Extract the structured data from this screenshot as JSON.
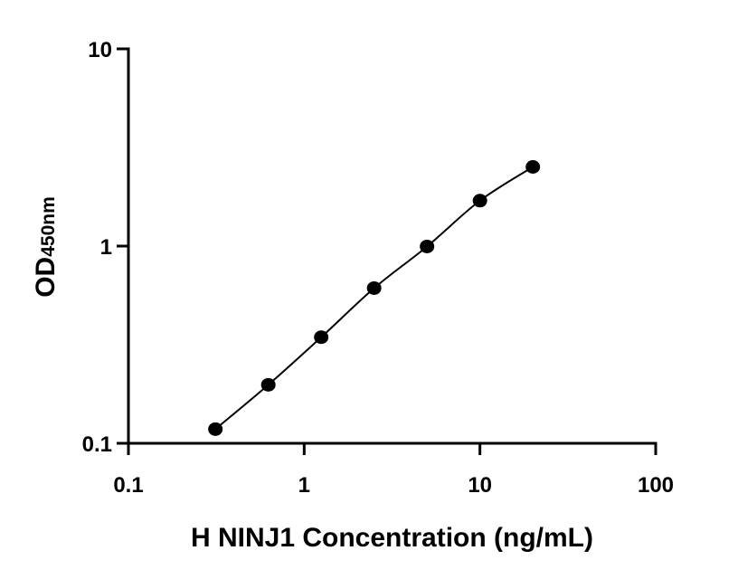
{
  "chart_data": {
    "type": "scatter",
    "title": "",
    "xlabel": "H NINJ1 Concentration (ng/mL)",
    "ylabel_main": "OD",
    "ylabel_sub": "450nm",
    "x_scale": "log",
    "y_scale": "log",
    "xlim": [
      0.1,
      100
    ],
    "ylim": [
      0.1,
      10
    ],
    "x_ticks": [
      0.1,
      1,
      10,
      100
    ],
    "x_tick_labels": [
      "0.1",
      "1",
      "10",
      "100"
    ],
    "y_ticks": [
      0.1,
      1,
      10
    ],
    "y_tick_labels": [
      "0.1",
      "1",
      "10"
    ],
    "grid": false,
    "legend": "none",
    "marker_color": "#000000",
    "line_color": "#000000",
    "series": [
      {
        "x": [
          0.3125,
          0.625,
          1.25,
          2.5,
          5,
          10,
          20
        ],
        "y": [
          0.118,
          0.198,
          0.345,
          0.612,
          0.995,
          1.7,
          2.52
        ],
        "fit": "smooth-curve"
      }
    ]
  }
}
